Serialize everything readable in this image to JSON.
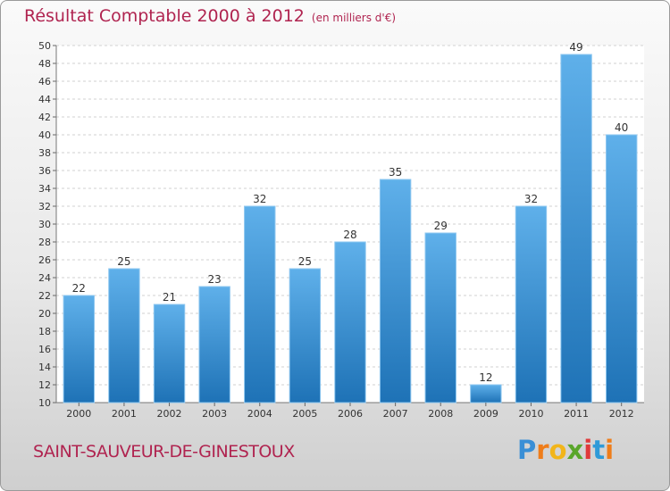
{
  "chart_data": {
    "type": "bar",
    "title": "Résultat Comptable 2000 à 2012",
    "subtitle": "(en milliers d'€)",
    "categories": [
      "2000",
      "2001",
      "2002",
      "2003",
      "2004",
      "2005",
      "2006",
      "2007",
      "2008",
      "2009",
      "2010",
      "2011",
      "2012"
    ],
    "values": [
      22,
      25,
      21,
      23,
      32,
      25,
      28,
      35,
      29,
      12,
      32,
      49,
      40
    ],
    "ylim": [
      10,
      50
    ],
    "yticks": [
      10,
      12,
      14,
      16,
      18,
      20,
      22,
      24,
      26,
      28,
      30,
      32,
      34,
      36,
      38,
      40,
      42,
      44,
      46,
      48,
      50
    ],
    "grid": true,
    "xlabel": "",
    "ylabel": "",
    "colors": {
      "bar_top": "#5fb0ea",
      "bar_bottom": "#1e72b6",
      "title": "#b02450"
    }
  },
  "footer": {
    "commune": "SAINT-SAUVEUR-DE-GINESTOUX",
    "logo_parts": [
      "P",
      "r",
      "o",
      "x",
      "i",
      "t",
      "i"
    ]
  }
}
